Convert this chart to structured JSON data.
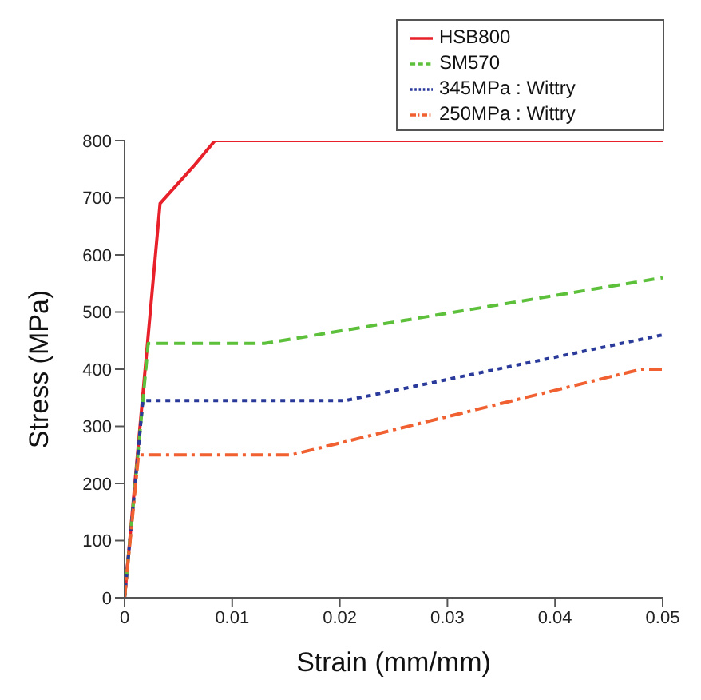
{
  "chart_data": {
    "type": "line",
    "xlabel": "Strain (mm/mm)",
    "ylabel": "Stress (MPa)",
    "xlim": [
      0,
      0.05
    ],
    "xticks": [
      0,
      0.01,
      0.02,
      0.03,
      0.04,
      0.05
    ],
    "ylim": [
      0,
      800
    ],
    "yticks": [
      0,
      100,
      200,
      300,
      400,
      500,
      600,
      700,
      800
    ],
    "legend": "top right",
    "marker": "none",
    "series": [
      {
        "name": "HSB800",
        "color": "#e8202a",
        "line_style": "solid",
        "x": [
          0,
          0.0033,
          0.0064,
          0.0084,
          0.05
        ],
        "values": [
          0,
          690,
          755,
          800,
          800
        ]
      },
      {
        "name": "SM570",
        "color": "#5cc03a",
        "line_style": "dashed",
        "x": [
          0,
          0.0022,
          0.013,
          0.05
        ],
        "values": [
          0,
          445,
          445,
          560
        ]
      },
      {
        "name": "345MPa : Wittry",
        "color": "#2a3a9a",
        "line_style": "dotted",
        "x": [
          0,
          0.0017,
          0.0205,
          0.05
        ],
        "values": [
          0,
          345,
          345,
          460
        ]
      },
      {
        "name": "250MPa : Wittry",
        "color": "#f06030",
        "line_style": "dashdot",
        "x": [
          0,
          0.0013,
          0.0155,
          0.048,
          0.05
        ],
        "values": [
          0,
          250,
          250,
          400,
          400
        ]
      }
    ]
  }
}
